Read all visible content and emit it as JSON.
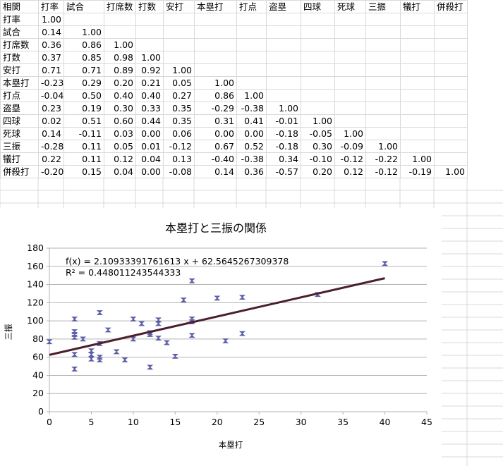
{
  "sheet": {
    "corner": "相関",
    "columns": [
      "打率",
      "試合",
      "打席数",
      "打数",
      "安打",
      "本塁打",
      "打点",
      "盗塁",
      "四球",
      "死球",
      "三振",
      "犠打",
      "併殺打"
    ],
    "rows": [
      {
        "label": "打率",
        "values": [
          "1.00"
        ]
      },
      {
        "label": "試合",
        "values": [
          "0.14",
          "1.00"
        ]
      },
      {
        "label": "打席数",
        "values": [
          "0.36",
          "0.86",
          "1.00"
        ]
      },
      {
        "label": "打数",
        "values": [
          "0.37",
          "0.85",
          "0.98",
          "1.00"
        ]
      },
      {
        "label": "安打",
        "values": [
          "0.71",
          "0.71",
          "0.89",
          "0.92",
          "1.00"
        ]
      },
      {
        "label": "本塁打",
        "values": [
          "-0.23",
          "0.29",
          "0.20",
          "0.21",
          "0.05",
          "1.00"
        ]
      },
      {
        "label": "打点",
        "values": [
          "-0.04",
          "0.50",
          "0.40",
          "0.40",
          "0.27",
          "0.86",
          "1.00"
        ]
      },
      {
        "label": "盗塁",
        "values": [
          "0.23",
          "0.19",
          "0.30",
          "0.33",
          "0.35",
          "-0.29",
          "-0.38",
          "1.00"
        ]
      },
      {
        "label": "四球",
        "values": [
          "0.02",
          "0.51",
          "0.60",
          "0.44",
          "0.35",
          "0.31",
          "0.41",
          "-0.01",
          "1.00"
        ]
      },
      {
        "label": "死球",
        "values": [
          "0.14",
          "-0.11",
          "0.03",
          "0.00",
          "0.06",
          "0.00",
          "0.00",
          "-0.18",
          "-0.05",
          "1.00"
        ]
      },
      {
        "label": "三振",
        "values": [
          "-0.28",
          "0.11",
          "0.05",
          "0.01",
          "-0.12",
          "0.67",
          "0.52",
          "-0.18",
          "0.30",
          "-0.09",
          "1.00"
        ]
      },
      {
        "label": "犠打",
        "values": [
          "0.22",
          "0.11",
          "0.12",
          "0.04",
          "0.13",
          "-0.40",
          "-0.38",
          "0.34",
          "-0.10",
          "-0.12",
          "-0.22",
          "1.00"
        ]
      },
      {
        "label": "併殺打",
        "values": [
          "-0.20",
          "0.15",
          "0.04",
          "0.00",
          "-0.08",
          "0.14",
          "0.36",
          "-0.57",
          "0.20",
          "0.12",
          "-0.12",
          "-0.19",
          "1.00"
        ]
      }
    ]
  },
  "chart_data": {
    "type": "scatter",
    "title": "本塁打と三振の関係",
    "xlabel": "本塁打",
    "ylabel": "三振",
    "xlim": [
      0,
      45
    ],
    "ylim": [
      0,
      180
    ],
    "xticks": [
      0,
      5,
      10,
      15,
      20,
      25,
      30,
      35,
      40,
      45
    ],
    "yticks": [
      0,
      20,
      40,
      60,
      80,
      100,
      120,
      140,
      160,
      180
    ],
    "grid": "horizontal",
    "legend": "none",
    "marker_color": "#5b5ea6",
    "trend_color": "#4b1f2e",
    "trendline": {
      "equation": "f(x) = 2.10933391761613 x + 62.5645267309378",
      "r2": "R² = 0.448011243544333",
      "slope": 2.10933391761613,
      "intercept": 62.5645267309378,
      "x_range": [
        0,
        40
      ]
    },
    "points": [
      {
        "x": 0,
        "y": 77
      },
      {
        "x": 3,
        "y": 102
      },
      {
        "x": 3,
        "y": 88
      },
      {
        "x": 3,
        "y": 85
      },
      {
        "x": 3,
        "y": 82
      },
      {
        "x": 3,
        "y": 63
      },
      {
        "x": 3,
        "y": 47
      },
      {
        "x": 4,
        "y": 80
      },
      {
        "x": 5,
        "y": 67
      },
      {
        "x": 5,
        "y": 63
      },
      {
        "x": 5,
        "y": 58
      },
      {
        "x": 6,
        "y": 109
      },
      {
        "x": 6,
        "y": 75
      },
      {
        "x": 6,
        "y": 60
      },
      {
        "x": 6,
        "y": 57
      },
      {
        "x": 7,
        "y": 90
      },
      {
        "x": 8,
        "y": 66
      },
      {
        "x": 9,
        "y": 57
      },
      {
        "x": 10,
        "y": 102
      },
      {
        "x": 10,
        "y": 80
      },
      {
        "x": 11,
        "y": 97
      },
      {
        "x": 12,
        "y": 87
      },
      {
        "x": 12,
        "y": 85
      },
      {
        "x": 12,
        "y": 49
      },
      {
        "x": 13,
        "y": 101
      },
      {
        "x": 13,
        "y": 97
      },
      {
        "x": 13,
        "y": 81
      },
      {
        "x": 14,
        "y": 76
      },
      {
        "x": 15,
        "y": 61
      },
      {
        "x": 16,
        "y": 123
      },
      {
        "x": 17,
        "y": 144
      },
      {
        "x": 17,
        "y": 102
      },
      {
        "x": 17,
        "y": 99
      },
      {
        "x": 17,
        "y": 84
      },
      {
        "x": 20,
        "y": 125
      },
      {
        "x": 21,
        "y": 78
      },
      {
        "x": 23,
        "y": 126
      },
      {
        "x": 23,
        "y": 86
      },
      {
        "x": 32,
        "y": 129
      },
      {
        "x": 40,
        "y": 163
      }
    ]
  }
}
